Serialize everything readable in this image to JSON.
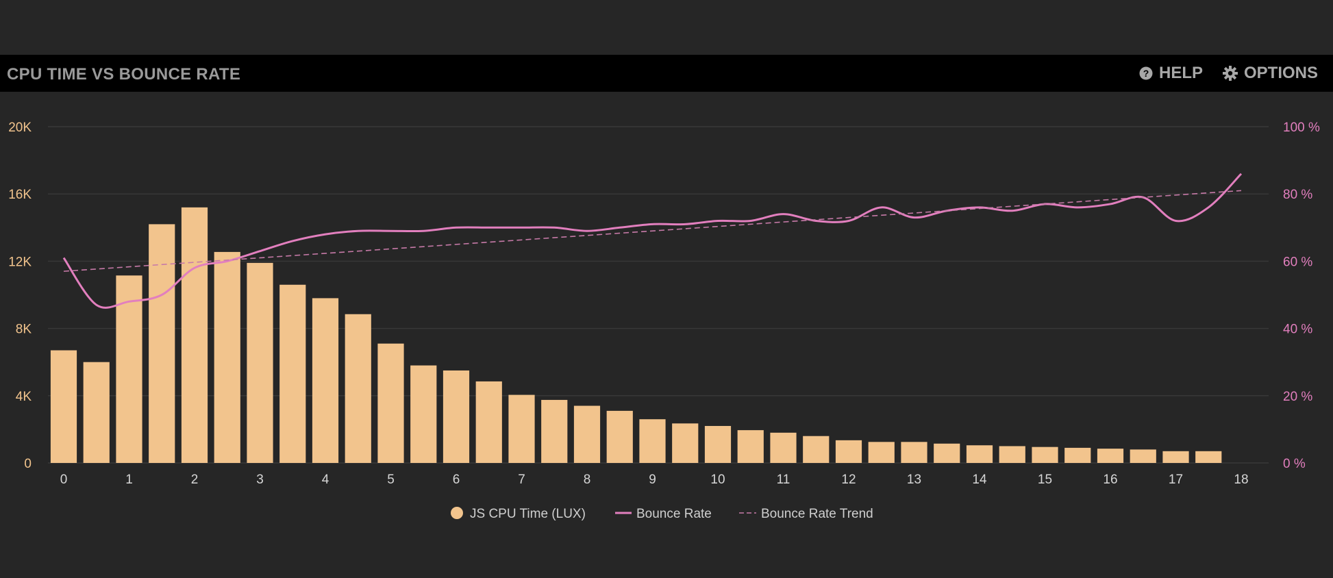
{
  "header": {
    "title": "CPU TIME VS BOUNCE RATE",
    "help_label": "HELP",
    "options_label": "OPTIONS",
    "help_icon": "question-circle-icon",
    "options_icon": "gear-icon"
  },
  "colors": {
    "background": "#262626",
    "header_bg": "#000000",
    "bars": "#f2c48d",
    "bounce_rate": "#e27fbe",
    "trend": "#c77aa8",
    "grid": "#383838"
  },
  "chart_data": {
    "type": "bar",
    "title": "CPU TIME VS BOUNCE RATE",
    "x_ticks": [
      "0",
      "1",
      "2",
      "3",
      "4",
      "5",
      "6",
      "7",
      "8",
      "9",
      "10",
      "11",
      "12",
      "13",
      "14",
      "15",
      "16",
      "17",
      "18"
    ],
    "x_range": [
      0,
      18
    ],
    "bar_step": 0.5,
    "y_left": {
      "range": [
        0,
        20000
      ],
      "ticks": [
        0,
        4000,
        8000,
        12000,
        16000,
        20000
      ],
      "tick_labels": [
        "0",
        "4K",
        "8K",
        "12K",
        "16K",
        "20K"
      ]
    },
    "y_right": {
      "range": [
        0,
        100
      ],
      "ticks": [
        0,
        20,
        40,
        60,
        80,
        100
      ],
      "tick_labels": [
        "0 %",
        "20 %",
        "40 %",
        "60 %",
        "80 %",
        "100 %"
      ]
    },
    "grid": true,
    "legend_position": "bottom-center",
    "series": [
      {
        "name": "JS CPU Time (LUX)",
        "type": "bar",
        "axis": "left",
        "x": [
          0,
          0.5,
          1,
          1.5,
          2,
          2.5,
          3,
          3.5,
          4,
          4.5,
          5,
          5.5,
          6,
          6.5,
          7,
          7.5,
          8,
          8.5,
          9,
          9.5,
          10,
          10.5,
          11,
          11.5,
          12,
          12.5,
          13,
          13.5,
          14,
          14.5,
          15,
          15.5,
          16,
          16.5,
          17,
          17.5
        ],
        "values": [
          6700,
          6000,
          11150,
          14200,
          15200,
          12550,
          11900,
          10600,
          9800,
          8850,
          7100,
          5800,
          5500,
          4850,
          4050,
          3750,
          3400,
          3100,
          2600,
          2350,
          2200,
          1950,
          1800,
          1600,
          1350,
          1250,
          1250,
          1150,
          1050,
          1000,
          950,
          900,
          850,
          800,
          700,
          700
        ]
      },
      {
        "name": "Bounce Rate",
        "type": "line",
        "axis": "right",
        "x": [
          0,
          0.5,
          1,
          1.5,
          2,
          2.5,
          3,
          3.5,
          4,
          4.5,
          5,
          5.5,
          6,
          6.5,
          7,
          7.5,
          8,
          8.5,
          9,
          9.5,
          10,
          10.5,
          11,
          11.5,
          12,
          12.5,
          13,
          13.5,
          14,
          14.5,
          15,
          15.5,
          16,
          16.5,
          17,
          17.5,
          18
        ],
        "values": [
          61,
          47,
          48,
          50,
          58,
          60,
          63,
          66,
          68,
          69,
          69,
          69,
          70,
          70,
          70,
          70,
          69,
          70,
          71,
          71,
          72,
          72,
          74,
          72,
          72,
          76,
          73,
          75,
          76,
          75,
          77,
          76,
          77,
          79,
          72,
          76,
          86
        ]
      },
      {
        "name": "Bounce Rate Trend",
        "type": "dashed-line",
        "axis": "right",
        "x": [
          0,
          18
        ],
        "values": [
          57,
          81
        ]
      }
    ]
  }
}
